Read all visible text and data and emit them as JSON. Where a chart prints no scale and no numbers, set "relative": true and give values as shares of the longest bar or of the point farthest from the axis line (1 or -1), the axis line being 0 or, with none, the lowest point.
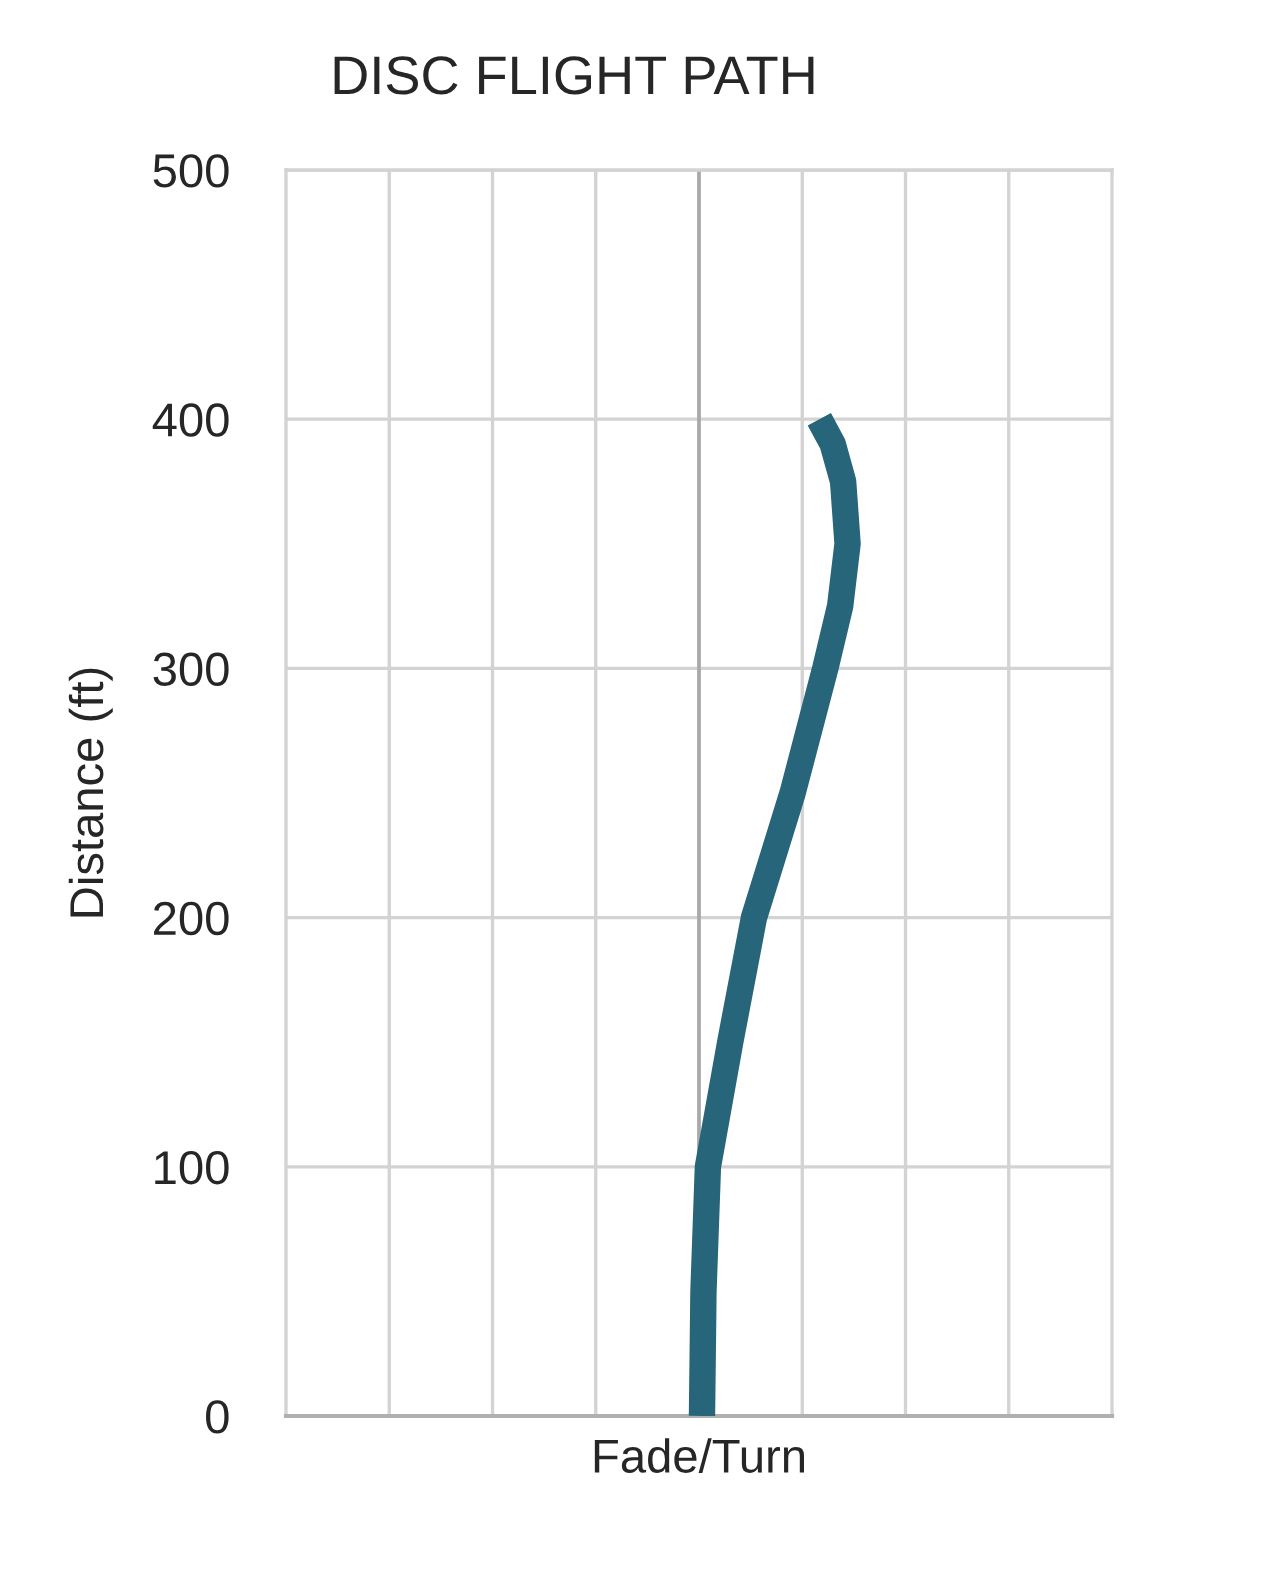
{
  "chart_data": {
    "type": "line",
    "title": "DISC FLIGHT PATH",
    "xlabel": "Fade/Turn",
    "ylabel": "Distance (ft)",
    "orientation": "horizontal",
    "relative": true,
    "series": [
      {
        "color": "#27657a",
        "x": [
          0,
          50,
          100,
          150,
          200,
          250,
          300,
          325,
          350,
          375,
          390,
          400
        ],
        "values": [
          0.02,
          0.03,
          0.06,
          0.21,
          0.37,
          0.63,
          0.85,
          0.95,
          1,
          0.97,
          0.9,
          0.81
        ]
      }
    ],
    "ylim": [
      0,
      500
    ],
    "yticks": [
      0,
      100,
      200,
      300,
      400,
      500
    ],
    "grid": true
  }
}
